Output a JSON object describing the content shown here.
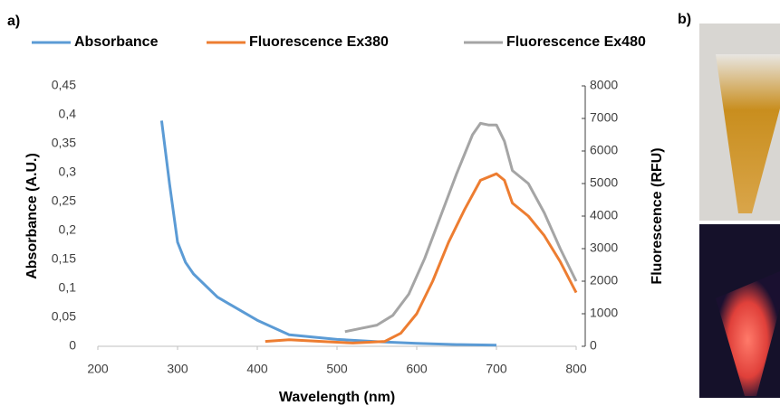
{
  "chart_data": {
    "type": "line",
    "x_label": "Wavelength (nm)",
    "y_label": "Absorbance (A.U.)",
    "y2_label": "Fluorescence (RFU)",
    "xlim": [
      200,
      800
    ],
    "xticks": [
      200,
      300,
      400,
      500,
      600,
      700,
      800
    ],
    "ylim": [
      0,
      0.45
    ],
    "yticks": [
      0,
      {
        "value": 0.05,
        "label": "0,05"
      },
      {
        "value": 0.1,
        "label": "0,1"
      },
      {
        "value": 0.15,
        "label": "0,15"
      },
      {
        "value": 0.2,
        "label": "0,2"
      },
      {
        "value": 0.25,
        "label": "0,25"
      },
      {
        "value": 0.3,
        "label": "0,3"
      },
      {
        "value": 0.35,
        "label": "0,35"
      },
      {
        "value": 0.4,
        "label": "0,4"
      },
      {
        "value": 0.45,
        "label": "0,45"
      }
    ],
    "y2lim": [
      0,
      8000
    ],
    "y2ticks": [
      0,
      1000,
      2000,
      3000,
      4000,
      5000,
      6000,
      7000,
      8000
    ],
    "series": [
      {
        "name": "Absorbance",
        "color": "#5b9bd5",
        "x": [
          280,
          290,
          300,
          310,
          320,
          350,
          400,
          440,
          500,
          550,
          600,
          650,
          700
        ],
        "values": [
          0.39,
          0.28,
          0.18,
          0.145,
          0.125,
          0.085,
          0.045,
          0.02,
          0.012,
          0.008,
          0.005,
          0.003,
          0.002
        ]
      },
      {
        "name": "Fluorescence Ex380",
        "color": "#ed7d31",
        "axis": "y2",
        "x": [
          410,
          440,
          480,
          520,
          560,
          580,
          600,
          620,
          640,
          660,
          680,
          700,
          710,
          720,
          740,
          760,
          780,
          800
        ],
        "values": [
          150,
          200,
          150,
          100,
          150,
          400,
          1000,
          2000,
          3200,
          4200,
          5100,
          5300,
          5100,
          4400,
          4000,
          3400,
          2600,
          1650
        ]
      },
      {
        "name": "Fluorescence Ex480",
        "color": "#a5a5a5",
        "axis": "y2",
        "x": [
          510,
          530,
          550,
          570,
          590,
          610,
          630,
          650,
          670,
          680,
          690,
          700,
          710,
          720,
          740,
          760,
          780,
          800
        ],
        "values": [
          450,
          550,
          650,
          950,
          1600,
          2700,
          4000,
          5300,
          6500,
          6850,
          6800,
          6800,
          6300,
          5400,
          5000,
          4100,
          3000,
          2000
        ]
      }
    ]
  },
  "panels": {
    "a": "a)",
    "b": "b)"
  }
}
